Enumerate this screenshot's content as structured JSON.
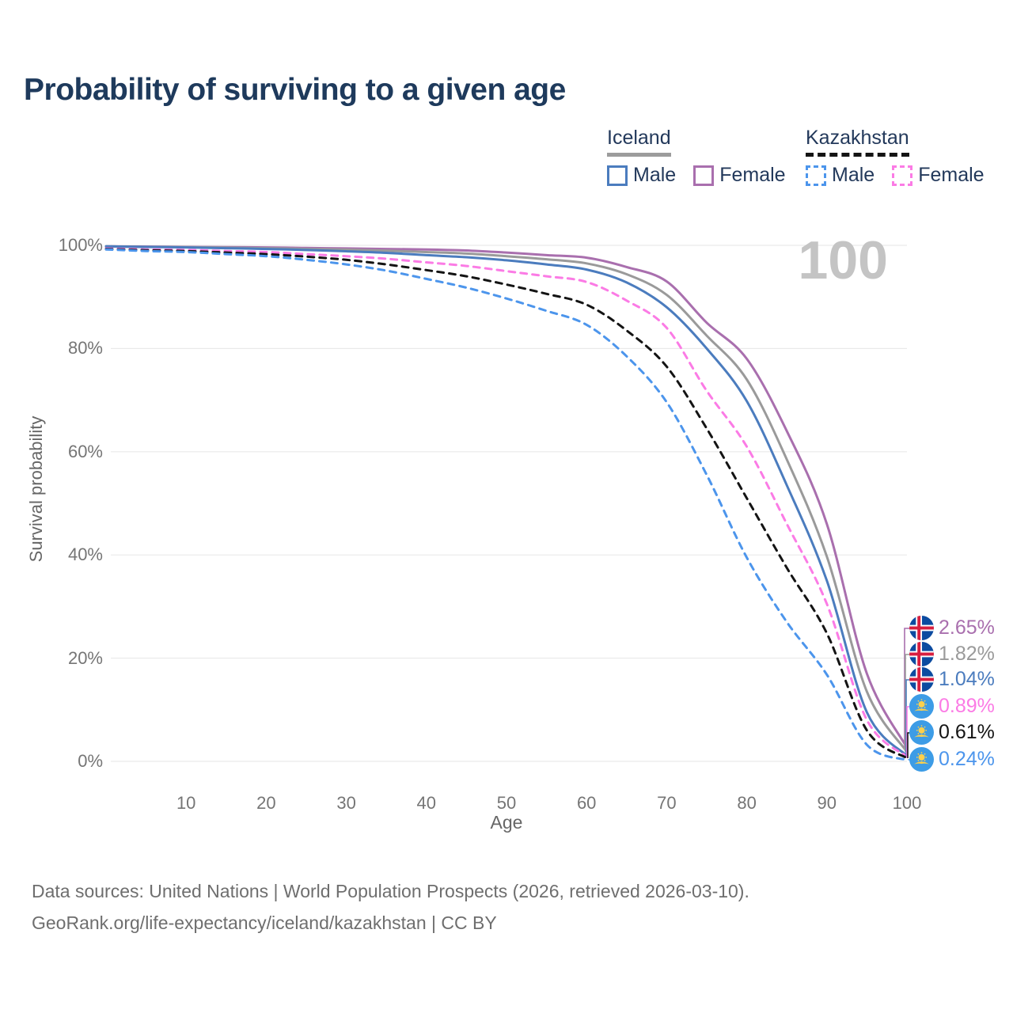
{
  "title": "Probability of surviving to a given age",
  "legend": {
    "groups": [
      {
        "name": "Iceland",
        "line_style": "solid",
        "underline_color": "#9c9c9c",
        "items": [
          {
            "label": "Male",
            "color": "#4B7CBE"
          },
          {
            "label": "Female",
            "color": "#A96FAE"
          }
        ]
      },
      {
        "name": "Kazakhstan",
        "line_style": "dashed",
        "underline_color": "#141414",
        "items": [
          {
            "label": "Male",
            "color": "#4C95EC"
          },
          {
            "label": "Female",
            "color": "#FB7BE5"
          }
        ]
      }
    ]
  },
  "chart_data": {
    "type": "line",
    "title": "Probability of surviving to a given age",
    "xlabel": "Age",
    "ylabel": "Survival probability",
    "annotation": "100",
    "xlim": [
      0,
      100
    ],
    "ylim": [
      0,
      100
    ],
    "grid": "horizontal",
    "x_ticks": [
      10,
      20,
      30,
      40,
      50,
      60,
      70,
      80,
      90,
      100
    ],
    "y_ticks": [
      "0%",
      "20%",
      "40%",
      "60%",
      "80%",
      "100%"
    ],
    "ages": [
      0,
      5,
      10,
      15,
      20,
      25,
      30,
      35,
      40,
      45,
      50,
      55,
      60,
      65,
      70,
      75,
      80,
      85,
      90,
      95,
      100
    ],
    "series": [
      {
        "name": "Iceland Female",
        "country": "Iceland",
        "sex": "Female",
        "style": "solid",
        "color": "#A96FAE",
        "end_label": "2.65%",
        "values": [
          99.8,
          99.75,
          99.7,
          99.65,
          99.6,
          99.5,
          99.4,
          99.3,
          99.2,
          99.0,
          98.6,
          98.1,
          97.6,
          95.8,
          93.0,
          85.0,
          78.0,
          64.0,
          46.0,
          17.0,
          2.65
        ]
      },
      {
        "name": "Iceland Both sexes",
        "country": "Iceland",
        "sex": "Both",
        "style": "solid",
        "color": "#9A9A9A",
        "end_label": "1.82%",
        "values": [
          99.8,
          99.7,
          99.65,
          99.55,
          99.45,
          99.3,
          99.15,
          98.95,
          98.7,
          98.4,
          97.9,
          97.3,
          96.5,
          94.4,
          90.4,
          82.5,
          74.0,
          58.5,
          39.7,
          13.5,
          1.82
        ]
      },
      {
        "name": "Iceland Male",
        "country": "Iceland",
        "sex": "Male",
        "style": "solid",
        "color": "#4B7CBE",
        "end_label": "1.04%",
        "values": [
          99.8,
          99.7,
          99.6,
          99.45,
          99.3,
          99.1,
          98.85,
          98.55,
          98.1,
          97.7,
          97.1,
          96.3,
          95.3,
          92.8,
          88.0,
          80.0,
          69.8,
          53.5,
          35.0,
          9.5,
          1.04
        ]
      },
      {
        "name": "Kazakhstan Female",
        "country": "Kazakhstan",
        "sex": "Female",
        "style": "dashed",
        "color": "#FB7BE5",
        "end_label": "0.89%",
        "values": [
          99.4,
          99.2,
          99.1,
          98.9,
          98.7,
          98.3,
          97.9,
          97.4,
          96.7,
          96.0,
          95.0,
          94.0,
          92.9,
          89.3,
          84.0,
          71.8,
          61.0,
          46.0,
          30.5,
          8.0,
          0.89
        ]
      },
      {
        "name": "Kazakhstan Both sexes",
        "country": "Kazakhstan",
        "sex": "Both",
        "style": "dashed",
        "color": "#141414",
        "end_label": "0.61%",
        "values": [
          99.3,
          99.05,
          98.9,
          98.6,
          98.3,
          97.8,
          97.2,
          96.3,
          95.2,
          94.0,
          92.4,
          90.6,
          88.5,
          83.5,
          76.5,
          64.5,
          51.0,
          37.5,
          24.8,
          6.0,
          0.61
        ]
      },
      {
        "name": "Kazakhstan Male",
        "country": "Kazakhstan",
        "sex": "Male",
        "style": "dashed",
        "color": "#4C95EC",
        "end_label": "0.24%",
        "values": [
          99.2,
          98.9,
          98.7,
          98.3,
          97.9,
          97.2,
          96.3,
          95.1,
          93.5,
          91.8,
          89.7,
          87.3,
          84.6,
          78.5,
          69.6,
          55.5,
          39.5,
          27.0,
          16.8,
          3.2,
          0.24
        ]
      }
    ],
    "legend_position": "top-right"
  },
  "footer": {
    "line1": "Data sources: United Nations | World Population Prospects (2026, retrieved 2026-03-10).",
    "line2": "GeoRank.org/life-expectancy/iceland/kazakhstan | CC BY"
  }
}
